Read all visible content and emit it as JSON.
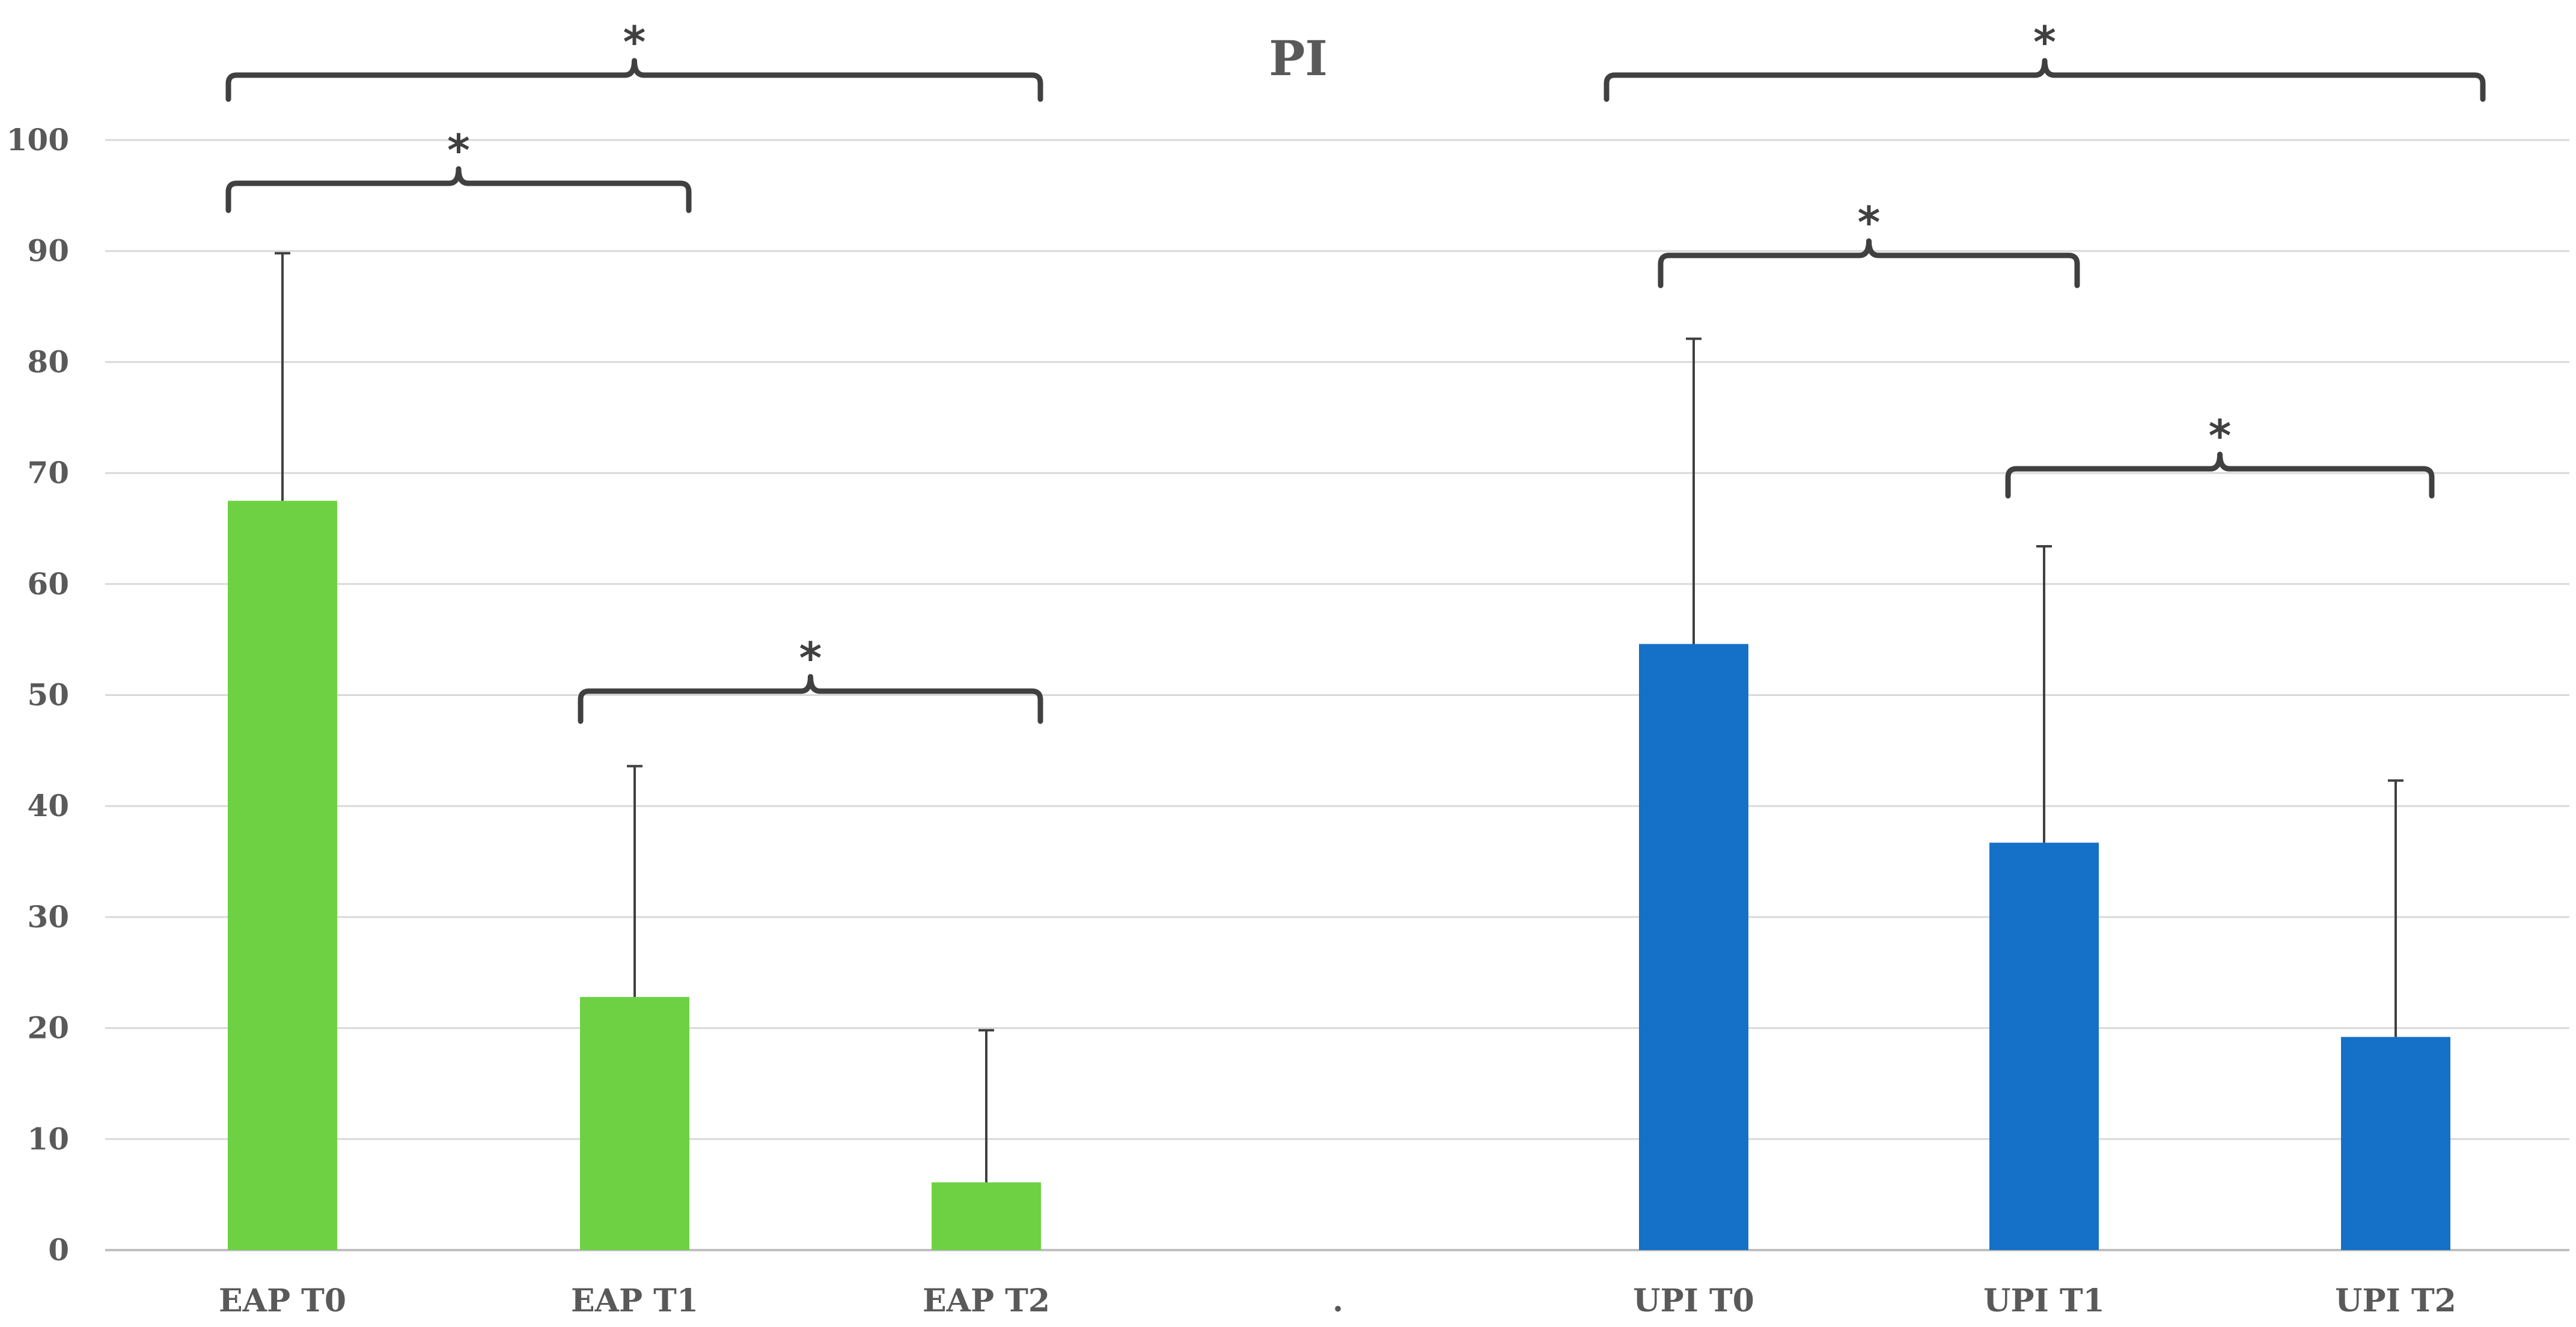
{
  "chart_data": {
    "type": "bar",
    "title": "PI",
    "xlabel": "",
    "ylabel": "",
    "ylim": [
      0,
      100
    ],
    "yticks": [
      0,
      10,
      20,
      30,
      40,
      50,
      60,
      70,
      80,
      90,
      100
    ],
    "grid": true,
    "legend": "none",
    "categories": [
      "EAP T0",
      "EAP T1",
      "EAP T2",
      "",
      "UPI T0",
      "UPI T1",
      "UPI T2"
    ],
    "values": [
      67.5,
      22.8,
      6.1,
      null,
      54.6,
      36.7,
      19.2
    ],
    "error_upper": [
      89.8,
      43.6,
      19.8,
      null,
      82.1,
      63.4,
      42.3
    ],
    "colors": [
      "#6dd143",
      "#6dd143",
      "#6dd143",
      null,
      "#1570c7",
      "#1570c7",
      "#1570c7"
    ],
    "separator_label": ".",
    "significance": [
      {
        "from": "EAP T0",
        "to": "EAP T2",
        "label": "*"
      },
      {
        "from": "EAP T0",
        "to": "EAP T1",
        "label": "*"
      },
      {
        "from": "EAP T1",
        "to": "EAP T2",
        "label": "*"
      },
      {
        "from": "UPI T0",
        "to": "UPI T2",
        "label": "*"
      },
      {
        "from": "UPI T0",
        "to": "UPI T1",
        "label": "*"
      },
      {
        "from": "UPI T1",
        "to": "UPI T2",
        "label": "*"
      }
    ]
  }
}
